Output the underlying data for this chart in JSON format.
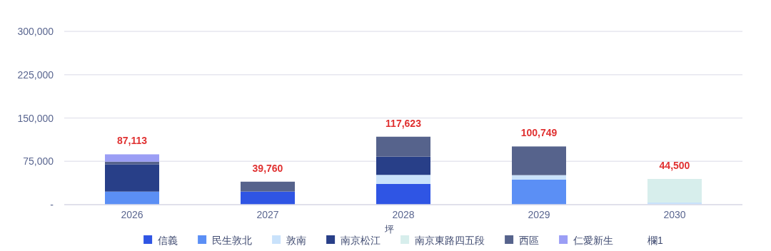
{
  "chart_data": {
    "type": "bar",
    "stacked": true,
    "categories": [
      "2026",
      "2027",
      "2028",
      "2029",
      "2030"
    ],
    "series": [
      {
        "name": "信義",
        "color": "#2f55e4",
        "values": [
          null,
          22700,
          35800,
          null,
          null
        ]
      },
      {
        "name": "民生敦北",
        "color": "#5b8ff5",
        "values": [
          22600,
          null,
          null,
          43200,
          null
        ]
      },
      {
        "name": "敦南",
        "color": "#c9e2fb",
        "values": [
          null,
          null,
          15700,
          7900,
          3700
        ]
      },
      {
        "name": "南京松江",
        "color": "#283f88",
        "values": [
          47300,
          null,
          31700,
          null,
          null
        ]
      },
      {
        "name": "南京東路四五段",
        "color": "#d7eeec",
        "values": [
          null,
          null,
          null,
          null,
          40800
        ]
      },
      {
        "name": "西區",
        "color": "#56638c",
        "values": [
          4500,
          17060,
          34423,
          49649,
          null
        ]
      },
      {
        "name": "仁愛新生",
        "color": "#9b9ef5",
        "values": [
          12713,
          null,
          null,
          null,
          null
        ]
      },
      {
        "name": "欄1",
        "values": [
          null,
          null,
          null,
          null,
          null
        ]
      }
    ],
    "totals": [
      "87,113",
      "39,760",
      "117,623",
      "100,749",
      "44,500"
    ],
    "ylim": [
      0,
      300000
    ],
    "yticks": [
      {
        "value": 0,
        "label": "-"
      },
      {
        "value": 75000,
        "label": "75,000"
      },
      {
        "value": 150000,
        "label": "150,000"
      },
      {
        "value": 225000,
        "label": "225,000"
      },
      {
        "value": 300000,
        "label": "300,000"
      }
    ],
    "grid": "y",
    "legend": "bottom",
    "annotations": [
      "坪"
    ]
  }
}
